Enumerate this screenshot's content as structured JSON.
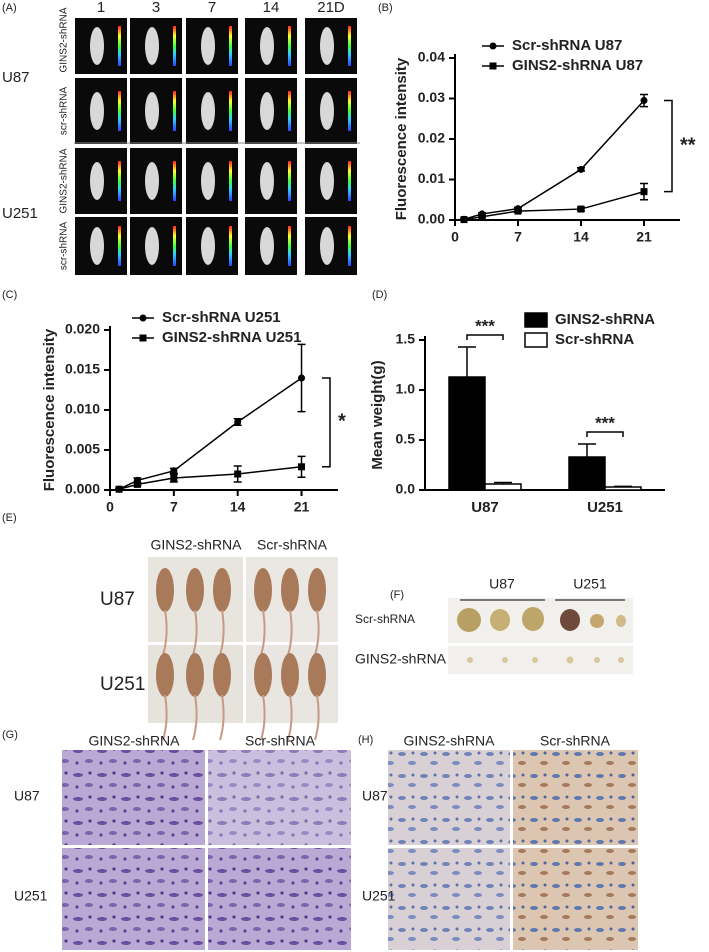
{
  "panel_a": {
    "label": "(A)",
    "columns": [
      "1",
      "3",
      "7",
      "14",
      "21D"
    ],
    "cell_lines": [
      "U87",
      "U251"
    ],
    "row_labels": [
      "GINS2-shRNA",
      "scr-shRNA",
      "GINS2-shRNA",
      "scr-shRNA"
    ]
  },
  "chart_data": [
    {
      "type": "line",
      "panel_label": "(B)",
      "y_label": "Fluorescence intensity",
      "x": [
        1,
        3,
        7,
        14,
        21
      ],
      "xlim": [
        0,
        25
      ],
      "xticks": [
        0,
        7,
        14,
        21
      ],
      "ylim": [
        0,
        0.04
      ],
      "yticks": [
        {
          "value": 0,
          "label": "0.00"
        },
        {
          "value": 0.01,
          "label": "0.01"
        },
        {
          "value": 0.02,
          "label": "0.02"
        },
        {
          "value": 0.03,
          "label": "0.03"
        },
        {
          "value": 0.04,
          "label": "0.04"
        }
      ],
      "series": [
        {
          "name": "Scr-shRNA U87",
          "color": "#000000",
          "marker": "circle",
          "values": [
            0.0002,
            0.0015,
            0.0028,
            0.0125,
            0.0295
          ],
          "errors": [
            0.0001,
            0.0003,
            0.0003,
            0.0004,
            0.0015
          ]
        },
        {
          "name": "GINS2-shRNA U87",
          "color": "#000000",
          "marker": "square",
          "values": [
            0.0001,
            0.0008,
            0.0022,
            0.0027,
            0.007
          ],
          "errors": [
            0.0001,
            0.0002,
            0.0003,
            0.0004,
            0.002
          ]
        }
      ],
      "annotation": "**"
    },
    {
      "type": "line",
      "panel_label": "(C)",
      "y_label": "Fluorescence intensity",
      "x": [
        1,
        3,
        7,
        14,
        21
      ],
      "xlim": [
        0,
        25
      ],
      "xticks": [
        0,
        7,
        14,
        21
      ],
      "ylim": [
        0,
        0.02
      ],
      "yticks": [
        {
          "value": 0,
          "label": "0.000"
        },
        {
          "value": 0.005,
          "label": "0.005"
        },
        {
          "value": 0.01,
          "label": "0.010"
        },
        {
          "value": 0.015,
          "label": "0.015"
        },
        {
          "value": 0.02,
          "label": "0.020"
        }
      ],
      "series": [
        {
          "name": "Scr-shRNA U251",
          "color": "#000000",
          "marker": "circle",
          "values": [
            0.0001,
            0.0012,
            0.0024,
            0.0085,
            0.014
          ],
          "errors": [
            0.0001,
            0.0003,
            0.0003,
            0.0004,
            0.0042
          ]
        },
        {
          "name": "GINS2-shRNA U251",
          "color": "#000000",
          "marker": "square",
          "values": [
            0.0001,
            0.0007,
            0.0015,
            0.002,
            0.0029
          ],
          "errors": [
            0.0001,
            0.0002,
            0.0005,
            0.001,
            0.0013
          ]
        }
      ],
      "annotation": "*"
    },
    {
      "type": "bar",
      "panel_label": "(D)",
      "y_label": "Mean weight(g)",
      "categories": [
        "U87",
        "U251"
      ],
      "ylim": [
        0,
        1.5
      ],
      "yticks": [
        {
          "value": 0,
          "label": "0.0"
        },
        {
          "value": 0.5,
          "label": "0.5"
        },
        {
          "value": 1,
          "label": "1.0"
        },
        {
          "value": 1.5,
          "label": "1.5"
        }
      ],
      "series": [
        {
          "name": "GINS2-shRNA",
          "color": "#000000",
          "values": [
            1.13,
            0.33
          ],
          "errors": [
            0.3,
            0.13
          ]
        },
        {
          "name": "Scr-shRNA",
          "color": "#ffffff",
          "values": [
            0.06,
            0.03
          ],
          "errors": [
            0.015,
            0.006
          ]
        }
      ],
      "annotations": [
        "***",
        "***"
      ]
    }
  ],
  "panel_e": {
    "label": "(E)",
    "columns": [
      "GINS2-shRNA",
      "Scr-shRNA"
    ],
    "rows": [
      "U87",
      "U251"
    ]
  },
  "panel_f": {
    "label": "(F)",
    "columns": [
      "U87",
      "U251"
    ],
    "rows": [
      "Scr-shRNA",
      "GINS2-shRNA"
    ]
  },
  "panel_g": {
    "label": "(G)",
    "columns": [
      "GINS2-shRNA",
      "Scr-shRNA"
    ],
    "rows": [
      "U87",
      "U251"
    ]
  },
  "panel_h": {
    "label": "(H)",
    "columns": [
      "GINS2-shRNA",
      "Scr-shRNA"
    ],
    "rows": [
      "U87",
      "U251"
    ]
  }
}
